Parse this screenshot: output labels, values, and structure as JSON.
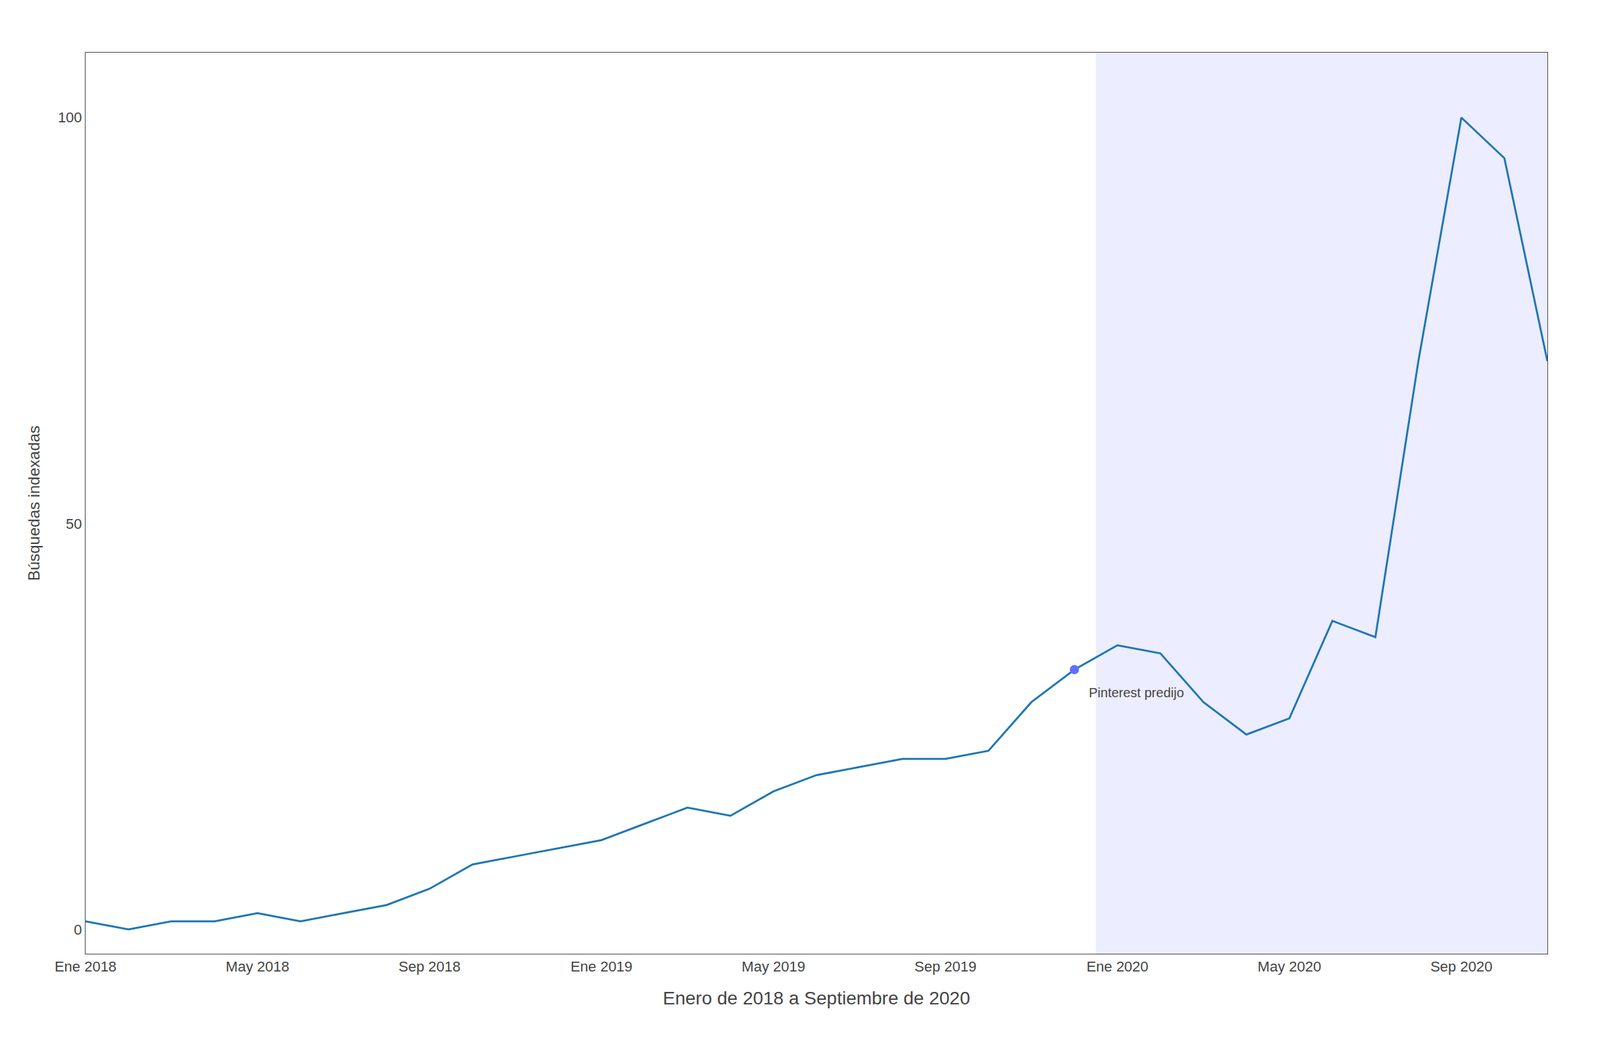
{
  "chart_data": {
    "type": "line",
    "xlabel": "Enero de 2018 a Septiembre de 2020",
    "ylabel": "Búsquedas indexadas",
    "categories": [
      "Ene 2018",
      null,
      null,
      null,
      "May 2018",
      null,
      null,
      null,
      "Sep 2018",
      null,
      null,
      null,
      "Ene 2019",
      null,
      null,
      null,
      "May 2019",
      null,
      null,
      null,
      "Sep 2019",
      null,
      null,
      null,
      "Ene 2020",
      null,
      null,
      null,
      "May 2020",
      null,
      null,
      null,
      "Sep 2020",
      null,
      null
    ],
    "values": [
      1,
      0,
      1,
      1,
      2,
      1,
      2,
      3,
      5,
      8,
      9,
      10,
      11,
      13,
      15,
      14,
      17,
      19,
      20,
      21,
      21,
      22,
      28,
      32,
      35,
      34,
      28,
      24,
      26,
      38,
      36,
      70,
      100,
      95,
      70
    ],
    "ylim": [
      -3,
      108
    ],
    "yticks": [
      0,
      50,
      100
    ],
    "grid": false,
    "forecast_from": "Ene 2020",
    "annotations": [
      {
        "text": "Pinterest predijo",
        "x": 23,
        "y": 32
      }
    ]
  }
}
